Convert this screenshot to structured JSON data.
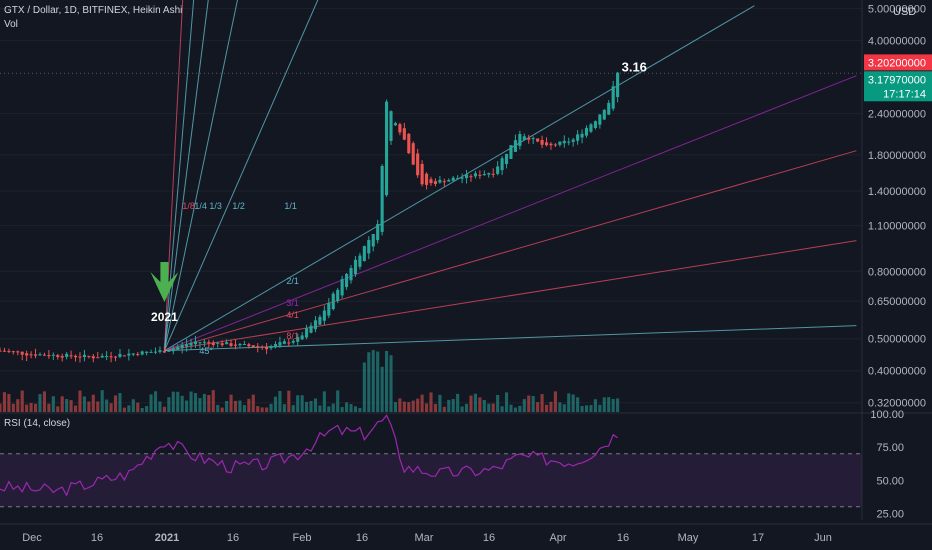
{
  "header": {
    "symbol_line": "GTX / Dollar, 1D, BITFINEX, Heikin Ashi",
    "vol_label": "Vol",
    "currency": "USD"
  },
  "price_axis": {
    "ticks": [
      "5.00000000",
      "4.00000000",
      "2.40000000",
      "1.80000000",
      "1.40000000",
      "1.10000000",
      "0.80000000",
      "0.65000000",
      "0.50000000",
      "0.40000000",
      "0.32000000"
    ],
    "tick_values": [
      5.0,
      4.0,
      2.4,
      1.8,
      1.4,
      1.1,
      0.8,
      0.65,
      0.5,
      0.4,
      0.32
    ],
    "high_marker": "3.20200000",
    "last_price": "3.17970000",
    "countdown": "17:17:14"
  },
  "annotations": {
    "peak_label": "3.16",
    "year_label": "2021",
    "fan_labels_upper": [
      "1/8",
      "1/4",
      "1/3",
      "1/2",
      "1/1"
    ],
    "fan_labels_lower": [
      "2/1",
      "3/1",
      "4/1",
      "8/1"
    ],
    "angle_label": "45°"
  },
  "rsi": {
    "label": "RSI (14, close)",
    "ticks": [
      "100.00",
      "75.00",
      "50.00",
      "25.00"
    ],
    "tick_values": [
      100,
      75,
      50,
      25
    ],
    "upper_band": 70,
    "lower_band": 30
  },
  "time_axis": {
    "labels": [
      "Dec",
      "16",
      "2021",
      "16",
      "Feb",
      "16",
      "Mar",
      "16",
      "Apr",
      "16",
      "May",
      "17",
      "Jun"
    ]
  },
  "colors": {
    "background": "#131722",
    "up": "#26a69a",
    "down": "#ef5350",
    "rsi_line": "#9c27b0",
    "rsi_band": "#2a1f3d",
    "price_label": "#089981",
    "high_label": "#f23645",
    "arrow": "#4caf50",
    "fan_cyan": "#5fb6c7",
    "fan_purple": "#9c27b0",
    "fan_red": "#e0495f"
  },
  "chart_data": {
    "type": "candlestick",
    "title": "GTX / Dollar, 1D, BITFINEX, Heikin Ashi",
    "y_scale": "log",
    "ylim": [
      0.3,
      5.3
    ],
    "x_axis": [
      "Dec",
      "16",
      "2021",
      "16",
      "Feb",
      "16",
      "Mar",
      "16",
      "Apr",
      "16",
      "May",
      "17",
      "Jun"
    ],
    "series": [
      {
        "name": "GTX/USD",
        "points": [
          {
            "date": "2020-11-25",
            "close": 0.46
          },
          {
            "date": "2020-12-01",
            "close": 0.45
          },
          {
            "date": "2020-12-08",
            "close": 0.445
          },
          {
            "date": "2020-12-16",
            "close": 0.44
          },
          {
            "date": "2020-12-24",
            "close": 0.45
          },
          {
            "date": "2021-01-01",
            "close": 0.46
          },
          {
            "date": "2021-01-08",
            "close": 0.49
          },
          {
            "date": "2021-01-16",
            "close": 0.48
          },
          {
            "date": "2021-01-24",
            "close": 0.47
          },
          {
            "date": "2021-01-31",
            "close": 0.5
          },
          {
            "date": "2021-02-05",
            "close": 0.58
          },
          {
            "date": "2021-02-10",
            "close": 0.75
          },
          {
            "date": "2021-02-15",
            "close": 0.95
          },
          {
            "date": "2021-02-18",
            "close": 1.1
          },
          {
            "date": "2021-02-20",
            "close": 2.6
          },
          {
            "date": "2021-02-24",
            "close": 2.0
          },
          {
            "date": "2021-02-28",
            "close": 1.45
          },
          {
            "date": "2021-03-04",
            "close": 1.5
          },
          {
            "date": "2021-03-10",
            "close": 1.55
          },
          {
            "date": "2021-03-16",
            "close": 1.6
          },
          {
            "date": "2021-03-22",
            "close": 2.1
          },
          {
            "date": "2021-03-28",
            "close": 1.9
          },
          {
            "date": "2021-04-03",
            "close": 2.0
          },
          {
            "date": "2021-04-08",
            "close": 2.3
          },
          {
            "date": "2021-04-11",
            "close": 2.6
          },
          {
            "date": "2021-04-13",
            "close": 3.18
          }
        ]
      }
    ],
    "rsi_series": [
      {
        "date": "2020-11-25",
        "value": 45
      },
      {
        "date": "2020-12-08",
        "value": 42
      },
      {
        "date": "2020-12-16",
        "value": 48
      },
      {
        "date": "2020-12-24",
        "value": 55
      },
      {
        "date": "2021-01-01",
        "value": 80
      },
      {
        "date": "2021-01-08",
        "value": 68
      },
      {
        "date": "2021-01-16",
        "value": 60
      },
      {
        "date": "2021-01-24",
        "value": 62
      },
      {
        "date": "2021-01-31",
        "value": 70
      },
      {
        "date": "2021-02-08",
        "value": 88
      },
      {
        "date": "2021-02-15",
        "value": 85
      },
      {
        "date": "2021-02-20",
        "value": 97
      },
      {
        "date": "2021-02-24",
        "value": 60
      },
      {
        "date": "2021-03-04",
        "value": 55
      },
      {
        "date": "2021-03-16",
        "value": 58
      },
      {
        "date": "2021-03-22",
        "value": 68
      },
      {
        "date": "2021-04-03",
        "value": 64
      },
      {
        "date": "2021-04-08",
        "value": 72
      },
      {
        "date": "2021-04-13",
        "value": 86
      }
    ]
  }
}
